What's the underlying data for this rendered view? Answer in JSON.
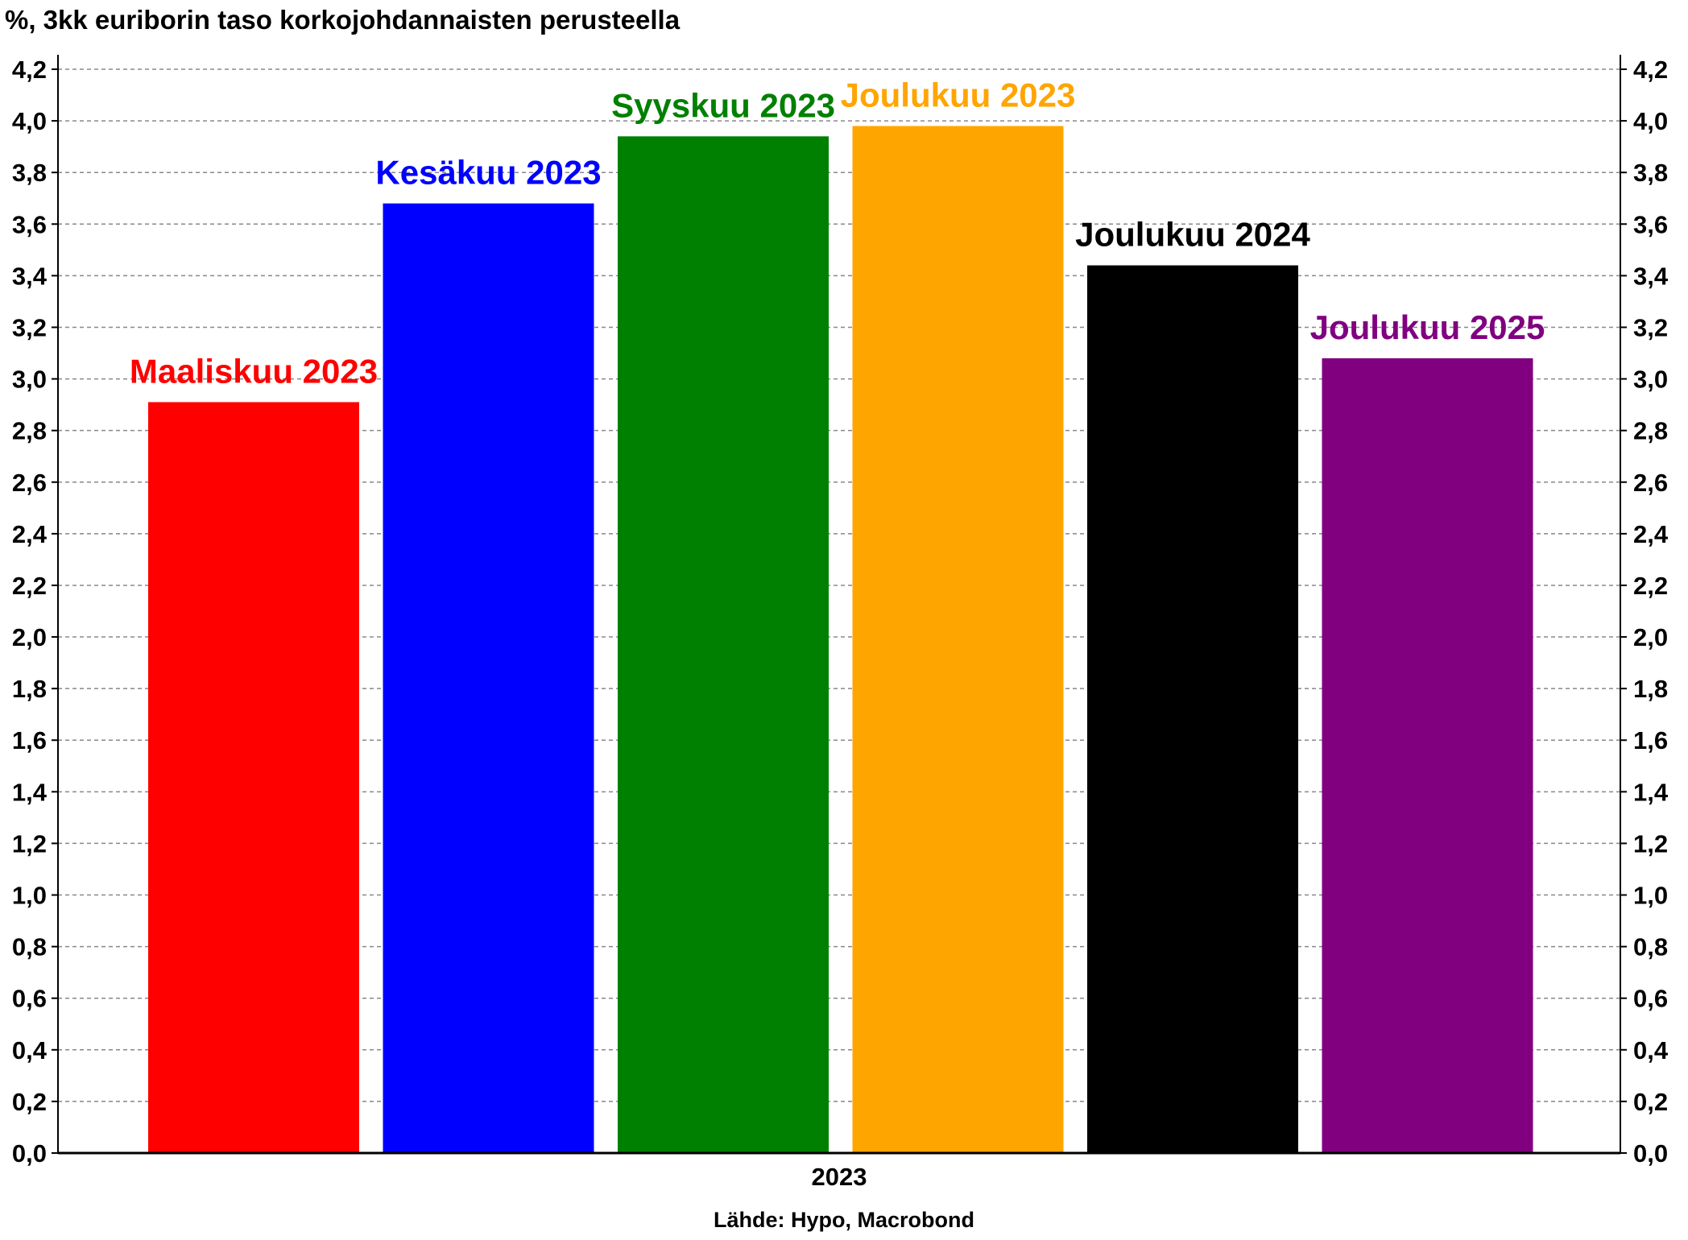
{
  "chart_data": {
    "type": "bar",
    "title": "%, 3kk euriborin taso korkojohdannaisten perusteella",
    "source": "Lähde: Hypo, Macrobond",
    "x_category": "2023",
    "categories": [
      "Maaliskuu 2023",
      "Kesäkuu 2023",
      "Syyskuu 2023",
      "Joulukuu 2023",
      "Joulukuu 2024",
      "Joulukuu 2025"
    ],
    "values": [
      2.91,
      3.68,
      3.94,
      3.98,
      3.44,
      3.08
    ],
    "colors": [
      "#ff0000",
      "#0000ff",
      "#008000",
      "#ffa500",
      "#000000",
      "#800080"
    ],
    "ylim": [
      0,
      4.2
    ],
    "yticks": [
      "0,0",
      "0,2",
      "0,4",
      "0,6",
      "0,8",
      "1,0",
      "1,2",
      "1,4",
      "1,6",
      "1,8",
      "2,0",
      "2,2",
      "2,4",
      "2,6",
      "2,8",
      "3,0",
      "3,2",
      "3,4",
      "3,6",
      "3,8",
      "4,0",
      "4,2"
    ],
    "y_axis_both_sides": true,
    "grid": true,
    "legend": "none"
  }
}
